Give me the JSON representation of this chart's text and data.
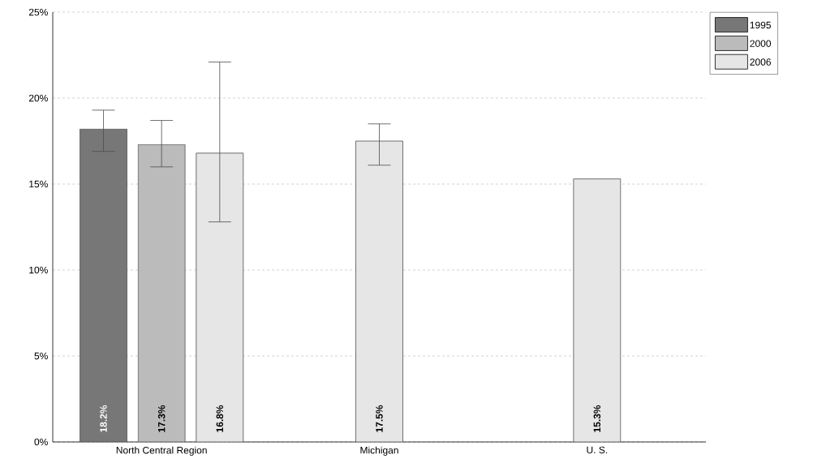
{
  "chart_data": {
    "type": "bar",
    "categories": [
      "North Central Region",
      "Michigan",
      "U. S."
    ],
    "series": [
      {
        "name": "1995",
        "color": "#777777",
        "values": [
          18.2,
          null,
          null
        ],
        "value_labels": [
          "18.2%",
          null,
          null
        ],
        "errors": [
          [
            16.9,
            19.3
          ],
          null,
          null
        ]
      },
      {
        "name": "2000",
        "color": "#bbbbbb",
        "values": [
          17.3,
          null,
          null
        ],
        "value_labels": [
          "17.3%",
          null,
          null
        ],
        "errors": [
          [
            16.0,
            18.7
          ],
          null,
          null
        ]
      },
      {
        "name": "2006",
        "color": "#e6e6e6",
        "values": [
          16.8,
          17.5,
          15.3
        ],
        "value_labels": [
          "16.8%",
          "17.5%",
          "15.3%"
        ],
        "errors": [
          [
            12.8,
            22.1
          ],
          [
            16.1,
            18.5
          ],
          null
        ]
      }
    ],
    "ylim": [
      0,
      25
    ],
    "yticks": [
      {
        "value": 0,
        "label": "0%"
      },
      {
        "value": 5,
        "label": "5%"
      },
      {
        "value": 10,
        "label": "10%"
      },
      {
        "value": 15,
        "label": "15%"
      },
      {
        "value": 20,
        "label": "20%"
      },
      {
        "value": 25,
        "label": "25%"
      }
    ],
    "grid": "y",
    "legend": "top right"
  }
}
